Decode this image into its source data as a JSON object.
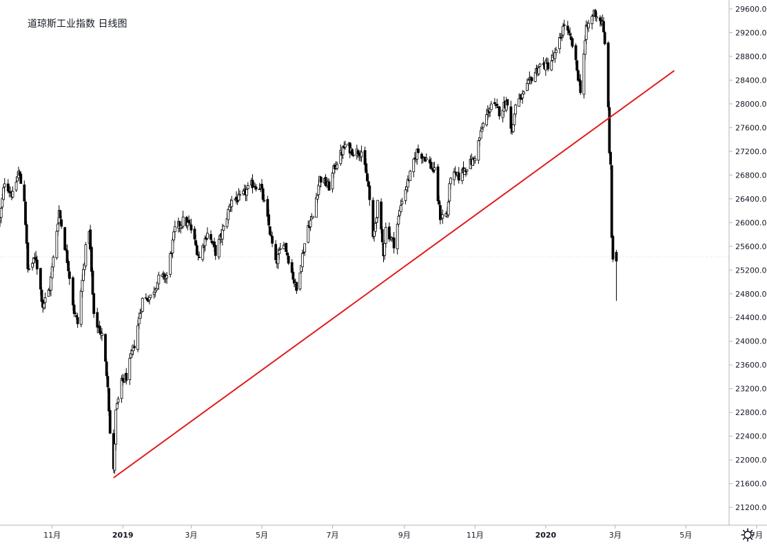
{
  "chart_data": {
    "type": "candlestick",
    "title": "道琼斯工业指数 日线图",
    "y_ticks": [
      21200,
      21600,
      22000,
      22400,
      22800,
      23200,
      23600,
      24000,
      24400,
      24800,
      25200,
      25600,
      26000,
      26400,
      26800,
      27200,
      27600,
      28000,
      28400,
      28800,
      29200,
      29600
    ],
    "y_tick_labels": [
      "21200.0",
      "21600.0",
      "22000.0",
      "22400.0",
      "22800.0",
      "23200.0",
      "23600.0",
      "24000.0",
      "24400.0",
      "24800.0",
      "25200.0",
      "25600.0",
      "26000.0",
      "26400.0",
      "26800.0",
      "27200.0",
      "27600.0",
      "28000.0",
      "28400.0",
      "28800.0",
      "29200.0",
      "29600.0"
    ],
    "ylim": [
      20900,
      29750
    ],
    "x_start": "2018-09-17",
    "x_end": "2020-07-10",
    "x_ticks": [
      {
        "date": "2018-11-01",
        "label": "11月"
      },
      {
        "date": "2019-01-01",
        "label": "2019"
      },
      {
        "date": "2019-03-01",
        "label": "3月"
      },
      {
        "date": "2019-05-01",
        "label": "5月"
      },
      {
        "date": "2019-07-01",
        "label": "7月"
      },
      {
        "date": "2019-09-01",
        "label": "9月"
      },
      {
        "date": "2019-11-01",
        "label": "11月"
      },
      {
        "date": "2020-01-01",
        "label": "2020"
      },
      {
        "date": "2020-03-01",
        "label": "3月"
      },
      {
        "date": "2020-05-01",
        "label": "5月"
      },
      {
        "date": "2020-07-01",
        "label": "7月"
      }
    ],
    "reference_price": 25420,
    "close_path": [
      [
        "2018-09-17",
        26050
      ],
      [
        "2018-09-21",
        26700
      ],
      [
        "2018-09-28",
        26450
      ],
      [
        "2018-10-03",
        26850
      ],
      [
        "2018-10-08",
        26400
      ],
      [
        "2018-10-11",
        25200
      ],
      [
        "2018-10-18",
        25400
      ],
      [
        "2018-10-24",
        24600
      ],
      [
        "2018-10-30",
        24900
      ],
      [
        "2018-11-07",
        26200
      ],
      [
        "2018-11-15",
        25250
      ],
      [
        "2018-11-20",
        24500
      ],
      [
        "2018-11-23",
        24300
      ],
      [
        "2018-11-30",
        25550
      ],
      [
        "2018-12-03",
        25900
      ],
      [
        "2018-12-07",
        24400
      ],
      [
        "2018-12-14",
        24100
      ],
      [
        "2018-12-19",
        23300
      ],
      [
        "2018-12-21",
        22450
      ],
      [
        "2018-12-24",
        21800
      ],
      [
        "2018-12-26",
        22800
      ],
      [
        "2018-12-31",
        23300
      ],
      [
        "2019-01-04",
        23400
      ],
      [
        "2019-01-11",
        23950
      ],
      [
        "2019-01-18",
        24700
      ],
      [
        "2019-01-25",
        24750
      ],
      [
        "2019-02-01",
        25050
      ],
      [
        "2019-02-08",
        25100
      ],
      [
        "2019-02-15",
        25880
      ],
      [
        "2019-02-22",
        26030
      ],
      [
        "2019-02-28",
        25950
      ],
      [
        "2019-03-08",
        25400
      ],
      [
        "2019-03-15",
        25850
      ],
      [
        "2019-03-22",
        25500
      ],
      [
        "2019-03-29",
        25900
      ],
      [
        "2019-04-05",
        26400
      ],
      [
        "2019-04-12",
        26400
      ],
      [
        "2019-04-23",
        26650
      ],
      [
        "2019-04-30",
        26600
      ],
      [
        "2019-05-07",
        25950
      ],
      [
        "2019-05-13",
        25300
      ],
      [
        "2019-05-20",
        25700
      ],
      [
        "2019-05-31",
        24850
      ],
      [
        "2019-06-04",
        25350
      ],
      [
        "2019-06-10",
        25950
      ],
      [
        "2019-06-14",
        26100
      ],
      [
        "2019-06-20",
        26750
      ],
      [
        "2019-06-28",
        26600
      ],
      [
        "2019-07-03",
        26950
      ],
      [
        "2019-07-12",
        27300
      ],
      [
        "2019-07-19",
        27200
      ],
      [
        "2019-07-26",
        27200
      ],
      [
        "2019-08-01",
        26600
      ],
      [
        "2019-08-05",
        25700
      ],
      [
        "2019-08-09",
        26300
      ],
      [
        "2019-08-14",
        25500
      ],
      [
        "2019-08-16",
        25900
      ],
      [
        "2019-08-23",
        25650
      ],
      [
        "2019-08-30",
        26400
      ],
      [
        "2019-09-06",
        26800
      ],
      [
        "2019-09-12",
        27200
      ],
      [
        "2019-09-19",
        27100
      ],
      [
        "2019-09-27",
        26850
      ],
      [
        "2019-10-02",
        26100
      ],
      [
        "2019-10-08",
        26150
      ],
      [
        "2019-10-11",
        26800
      ],
      [
        "2019-10-18",
        26770
      ],
      [
        "2019-10-25",
        26950
      ],
      [
        "2019-10-31",
        27050
      ],
      [
        "2019-11-08",
        27650
      ],
      [
        "2019-11-15",
        28000
      ],
      [
        "2019-11-22",
        27870
      ],
      [
        "2019-11-29",
        28050
      ],
      [
        "2019-12-03",
        27500
      ],
      [
        "2019-12-06",
        28000
      ],
      [
        "2019-12-13",
        28150
      ],
      [
        "2019-12-20",
        28450
      ],
      [
        "2019-12-27",
        28650
      ],
      [
        "2020-01-03",
        28650
      ],
      [
        "2020-01-10",
        28850
      ],
      [
        "2020-01-17",
        29350
      ],
      [
        "2020-01-24",
        28990
      ],
      [
        "2020-01-31",
        28250
      ],
      [
        "2020-02-05",
        29250
      ],
      [
        "2020-02-12",
        29550
      ],
      [
        "2020-02-19",
        29350
      ],
      [
        "2020-02-21",
        28990
      ],
      [
        "2020-02-24",
        28000
      ],
      [
        "2020-02-25",
        27100
      ],
      [
        "2020-02-26",
        27000
      ],
      [
        "2020-02-27",
        25760
      ],
      [
        "2020-02-28",
        25400
      ]
    ],
    "trendline": {
      "start": [
        "2018-12-24",
        21700
      ],
      "end": [
        "2020-04-21",
        28560
      ],
      "color": "#e01b1b"
    },
    "colors": {
      "candle_up": "#ffffff",
      "candle_down": "#000000",
      "outline": "#000000",
      "trendline": "#e01b1b",
      "axis": "#b2b5be",
      "text": "#131722",
      "crosshair": "#9598a1"
    }
  },
  "toolbar": {
    "settings_icon": "gear-icon"
  }
}
